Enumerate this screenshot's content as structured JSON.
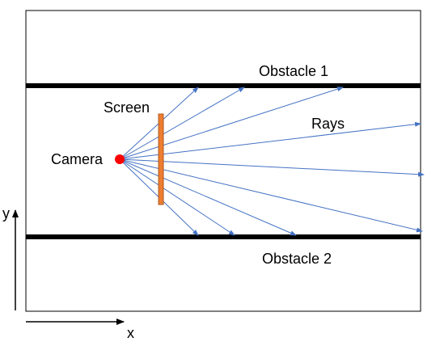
{
  "labels": {
    "obstacle1": "Obstacle 1",
    "obstacle2": "Obstacle 2",
    "screen": "Screen",
    "rays": "Rays",
    "camera": "Camera",
    "axis_x": "x",
    "axis_y": "y"
  },
  "colors": {
    "ray": "#4472c4",
    "screen_fill": "#ed7d31",
    "screen_stroke": "#ae5a21",
    "camera": "#ff0000",
    "obstacle": "#000000",
    "frame": "#000000"
  }
}
